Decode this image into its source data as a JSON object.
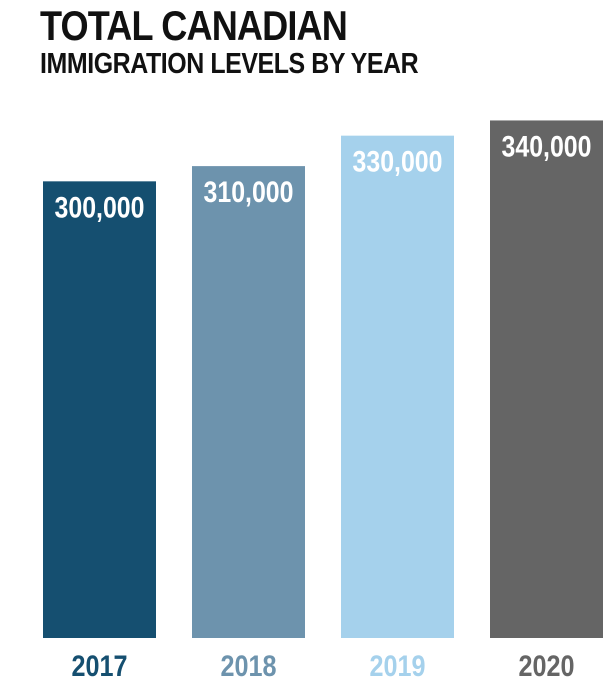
{
  "chart_data": {
    "type": "bar",
    "title": "TOTAL CANADIAN",
    "subtitle": "IMMIGRATION LEVELS BY YEAR",
    "categories": [
      "2017",
      "2018",
      "2019",
      "2020"
    ],
    "values": [
      300000,
      310000,
      330000,
      340000
    ],
    "value_labels": [
      "300,000",
      "310,000",
      "330,000",
      "340,000"
    ],
    "bar_colors": [
      "#154f70",
      "#6d93ad",
      "#a5d1ec",
      "#656565"
    ],
    "label_text_colors": [
      "#ffffff",
      "#ffffff",
      "#ffffff",
      "#ffffff"
    ],
    "category_text_colors": [
      "#154f70",
      "#6d93ad",
      "#a5d1ec",
      "#656565"
    ],
    "ylim": [
      0,
      360000
    ],
    "grid": false,
    "legend": "none"
  }
}
